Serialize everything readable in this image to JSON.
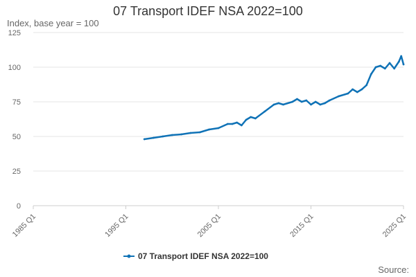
{
  "chart_data": {
    "type": "line",
    "title": "07 Transport IDEF NSA 2022=100",
    "ylabel": "Index, base year = 100",
    "xlabel": "",
    "source": "Source:",
    "xlim": [
      "1985 Q1",
      "2025 Q1"
    ],
    "ylim": [
      0,
      125
    ],
    "y_ticks": [
      0,
      25,
      50,
      75,
      100,
      125
    ],
    "x_ticks": [
      "1985 Q1",
      "1995 Q1",
      "2005 Q1",
      "2015 Q1",
      "2025 Q1"
    ],
    "grid": "horizontal",
    "legend_position": "bottom",
    "colors": {
      "series": "#0f72b6",
      "grid": "#e6e6e6",
      "axis": "#cccccc"
    },
    "series": [
      {
        "name": "07 Transport IDEF NSA 2022=100",
        "x": [
          "1997 Q1",
          "1998 Q1",
          "1999 Q1",
          "2000 Q1",
          "2001 Q1",
          "2002 Q1",
          "2003 Q1",
          "2004 Q1",
          "2005 Q1",
          "2006 Q1",
          "2006 Q3",
          "2007 Q1",
          "2007 Q3",
          "2008 Q1",
          "2008 Q3",
          "2009 Q1",
          "2010 Q1",
          "2011 Q1",
          "2011 Q3",
          "2012 Q1",
          "2013 Q1",
          "2013 Q3",
          "2014 Q1",
          "2014 Q3",
          "2015 Q1",
          "2015 Q3",
          "2016 Q1",
          "2016 Q3",
          "2017 Q1",
          "2018 Q1",
          "2019 Q1",
          "2019 Q3",
          "2020 Q1",
          "2020 Q3",
          "2021 Q1",
          "2021 Q3",
          "2022 Q1",
          "2022 Q3",
          "2023 Q1",
          "2023 Q3",
          "2024 Q1",
          "2024 Q3",
          "2024 Q4",
          "2025 Q1"
        ],
        "values": [
          48,
          49,
          50,
          51,
          51.5,
          52.5,
          53,
          55,
          56,
          59,
          59,
          60,
          58,
          62,
          64,
          63,
          68,
          73,
          74,
          73,
          75,
          77,
          75,
          76,
          73,
          75,
          73,
          74,
          76,
          79,
          81,
          84,
          82,
          84,
          87,
          95,
          100,
          101,
          99,
          103,
          99,
          104,
          108,
          102
        ]
      }
    ]
  }
}
